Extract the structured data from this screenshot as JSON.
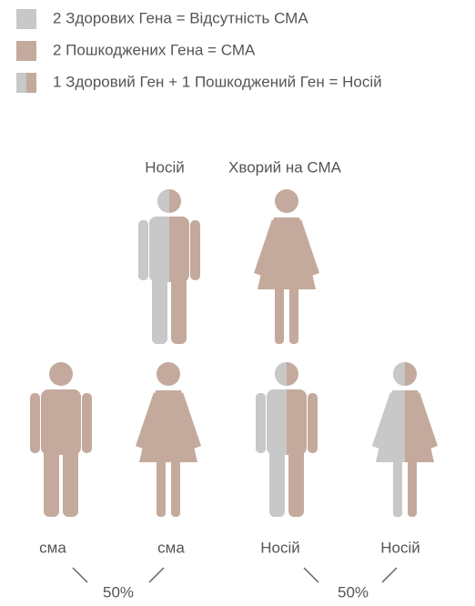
{
  "legend": [
    {
      "label": "2 Здорових Гена = Відсутність СМА"
    },
    {
      "label": "2 Пошкоджених Гена = СМА"
    },
    {
      "label": "1 Здоровий Ген + 1 Пошкоджений Ген = Носій"
    }
  ],
  "parents": [
    {
      "label": "Носій"
    },
    {
      "label": "Хворий на СМА"
    }
  ],
  "children": [
    {
      "label": "сма"
    },
    {
      "label": "сма"
    },
    {
      "label": "Носій"
    },
    {
      "label": "Носій"
    }
  ],
  "percentages": [
    "50%",
    "50%"
  ]
}
